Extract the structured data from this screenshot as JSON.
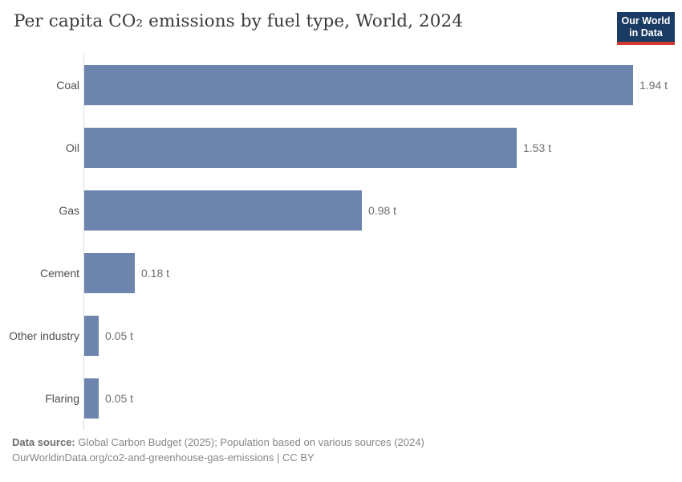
{
  "header": {
    "title": "Per capita CO₂ emissions by fuel type, World, 2024",
    "logo": {
      "line1": "Our World",
      "line2": "in Data"
    }
  },
  "chart_data": {
    "type": "bar",
    "orientation": "horizontal",
    "title": "Per capita CO₂ emissions by fuel type, World, 2024",
    "categories": [
      "Coal",
      "Oil",
      "Gas",
      "Cement",
      "Other industry",
      "Flaring"
    ],
    "values": [
      1.94,
      1.53,
      0.98,
      0.18,
      0.05,
      0.05
    ],
    "value_labels": [
      "1.94 t",
      "1.53 t",
      "0.98 t",
      "0.18 t",
      "0.05 t",
      "0.05 t"
    ],
    "unit": "t",
    "xlabel": "",
    "ylabel": "",
    "xlim": [
      0,
      2.1
    ],
    "grid": false,
    "legend": false,
    "bar_color": "#6d85ad"
  },
  "footer": {
    "source_label": "Data source:",
    "source_text": " Global Carbon Budget (2025); Population based on various sources (2024)",
    "link_line": "OurWorldinData.org/co2-and-greenhouse-gas-emissions | CC BY"
  },
  "colors": {
    "bar": "#6d85ad",
    "axis_line": "#dcdcdc",
    "title_text": "#3a3a3a",
    "category_text": "#4e4e4e",
    "value_text": "#6e6e6e",
    "footer_text": "#858585",
    "logo_background": "#1a3b63",
    "logo_underline": "#cf3a30"
  }
}
